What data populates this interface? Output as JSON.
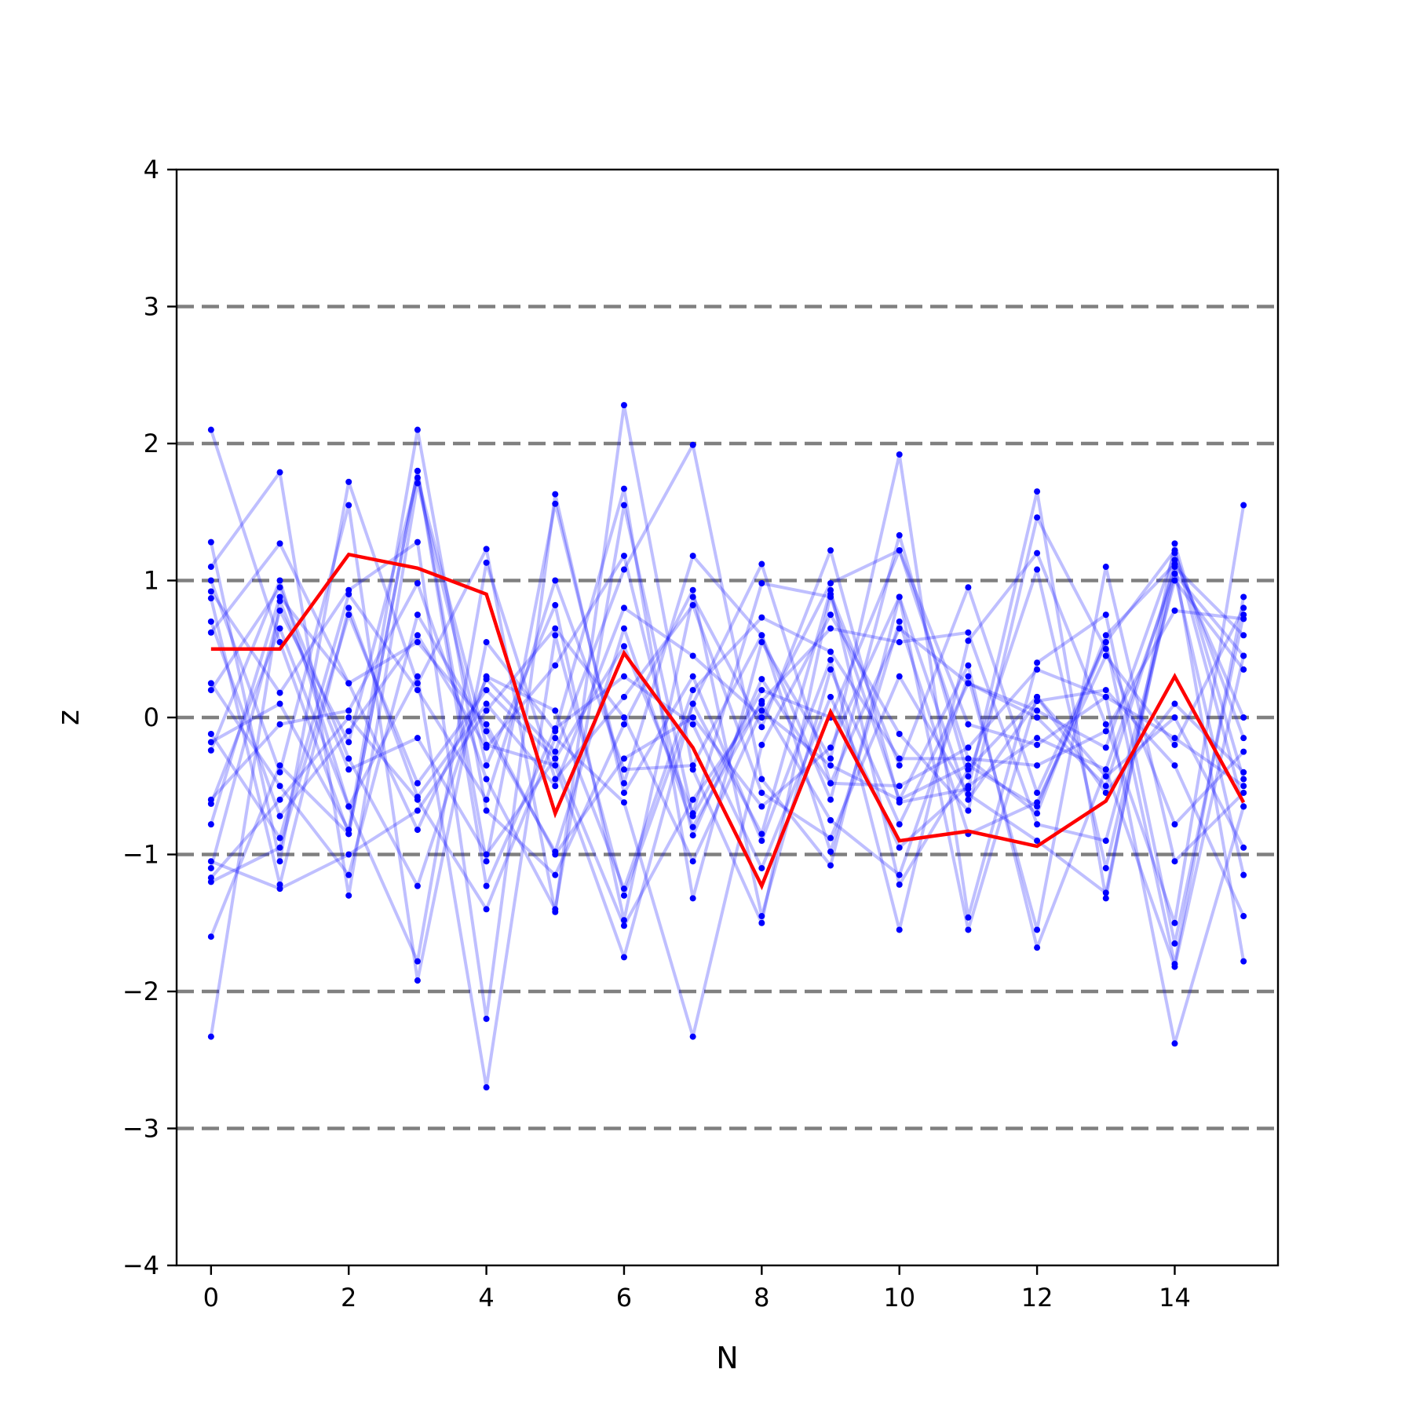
{
  "chart_data": {
    "type": "line",
    "title": "",
    "xlabel": "N",
    "ylabel": "z",
    "xlim": [
      -0.5,
      15.5
    ],
    "ylim": [
      -4,
      4
    ],
    "xticks": [
      0,
      2,
      4,
      6,
      8,
      10,
      12,
      14
    ],
    "yticks": [
      -4,
      -3,
      -2,
      -1,
      0,
      1,
      2,
      3,
      4
    ],
    "ytick_labels": [
      "−4",
      "−3",
      "−2",
      "−1",
      "0",
      "1",
      "2",
      "3",
      "4"
    ],
    "reference_lines": [
      -3,
      -2,
      -1,
      0,
      1,
      2,
      3
    ],
    "reference_line_style": "dashed",
    "grid": false,
    "legend": "none",
    "x": [
      0,
      1,
      2,
      3,
      4,
      5,
      6,
      7,
      8,
      9,
      10,
      11,
      12,
      13,
      14,
      15
    ],
    "highlight_series": {
      "values": [
        0.5,
        0.5,
        1.19,
        1.09,
        0.9,
        -0.7,
        0.47,
        -0.22,
        -1.23,
        0.04,
        -0.9,
        -0.83,
        -0.94,
        -0.61,
        0.3,
        -0.62
      ]
    },
    "sample_series": [
      {
        "values": [
          2.1,
          0.55,
          -0.85,
          1.8,
          -1.05,
          1.56,
          -0.48,
          1.18,
          0.6,
          -0.6,
          1.33,
          -0.43,
          1.08,
          -1.1,
          1.05,
          0.45
        ]
      },
      {
        "values": [
          1.28,
          -1.05,
          1.72,
          0.25,
          1.23,
          -1.42,
          2.28,
          -0.38,
          -1.5,
          0.9,
          -0.35,
          0.95,
          -0.55,
          0.55,
          -1.8,
          0.88
        ]
      },
      {
        "values": [
          1.1,
          1.79,
          -1.3,
          1.71,
          -0.35,
          0.82,
          -1.48,
          0.88,
          -0.07,
          1.22,
          -0.62,
          -0.52,
          1.65,
          -1.32,
          1.27,
          -0.45
        ]
      },
      {
        "values": [
          1.0,
          -0.4,
          1.55,
          -1.92,
          0.55,
          -0.1,
          1.67,
          -1.32,
          0.55,
          -0.3,
          1.92,
          -1.46,
          0.4,
          0.75,
          -1.65,
          0.75
        ]
      },
      {
        "values": [
          0.92,
          0.18,
          0.93,
          1.28,
          -2.2,
          1.63,
          -0.55,
          0.3,
          -0.9,
          0.42,
          -1.55,
          0.56,
          1.2,
          -0.05,
          -1.5,
          1.55
        ]
      },
      {
        "values": [
          0.87,
          -1.22,
          0.8,
          -0.58,
          0.1,
          -0.5,
          0.8,
          0.45,
          0.0,
          0.98,
          1.22,
          -0.3,
          -0.7,
          0.6,
          1.12,
          -1.78
        ]
      },
      {
        "values": [
          0.7,
          -0.72,
          -0.1,
          0.6,
          -0.22,
          0.38,
          1.18,
          -0.86,
          0.28,
          -0.48,
          0.65,
          0.25,
          0.05,
          -0.22,
          1.2,
          -0.15
        ]
      },
      {
        "values": [
          0.62,
          1.27,
          0.25,
          -0.82,
          0.28,
          -0.25,
          1.08,
          1.99,
          -0.45,
          -1.08,
          0.88,
          -0.6,
          0.12,
          0.2,
          -0.35,
          -1.45
        ]
      },
      {
        "values": [
          0.25,
          -0.5,
          -1.15,
          0.75,
          -0.1,
          -0.98,
          0.65,
          -0.8,
          0.12,
          0.65,
          0.55,
          0.62,
          -0.78,
          -0.9,
          1.0,
          0.35
        ]
      },
      {
        "values": [
          0.2,
          0.95,
          -0.3,
          -1.23,
          0.3,
          0.05,
          -1.25,
          0.2,
          0.73,
          0.48,
          -0.3,
          -0.3,
          -0.35,
          -0.1,
          0.78,
          0.72
        ]
      },
      {
        "values": [
          -0.12,
          -0.88,
          0.9,
          0.2,
          -0.6,
          1.0,
          -0.38,
          -0.35,
          0.6,
          -0.98,
          0.7,
          -0.85,
          -0.62,
          0.45,
          -0.2,
          0.8
        ]
      },
      {
        "values": [
          -0.18,
          0.1,
          -0.82,
          2.1,
          -0.68,
          -1.15,
          -0.05,
          0.93,
          -1.45,
          0.35,
          -0.78,
          0.25,
          0.0,
          -0.5,
          1.1,
          0.6
        ]
      },
      {
        "values": [
          -0.24,
          1.0,
          -0.65,
          -1.78,
          1.13,
          -0.45,
          0.15,
          0.82,
          -0.55,
          -0.88,
          0.3,
          -0.56,
          -0.9,
          -1.28,
          1.15,
          0.0
        ]
      },
      {
        "values": [
          -0.6,
          -0.05,
          0.05,
          0.98,
          -0.45,
          -1.4,
          1.55,
          -0.72,
          0.2,
          0.0,
          1.22,
          -0.05,
          -0.2,
          0.15,
          -2.38,
          -0.65
        ]
      },
      {
        "values": [
          -0.63,
          0.65,
          -0.65,
          0.3,
          -2.7,
          0.6,
          -1.3,
          0.1,
          1.12,
          -0.48,
          -0.5,
          -0.22,
          0.35,
          0.15,
          -0.15,
          -0.5
        ]
      },
      {
        "values": [
          -0.78,
          0.88,
          0.25,
          0.55,
          -0.05,
          -1.0,
          -0.3,
          0.0,
          -0.65,
          -0.22,
          0.88,
          -1.55,
          0.15,
          -0.43,
          0.0,
          -0.95
        ]
      },
      {
        "values": [
          -1.05,
          -1.25,
          -1.0,
          -0.68,
          0.05,
          0.65,
          0.0,
          -1.05,
          0.05,
          -0.35,
          -0.6,
          0.38,
          -1.68,
          -0.38,
          1.05,
          -1.15
        ]
      },
      {
        "values": [
          -1.1,
          0.78,
          -0.18,
          1.75,
          -0.2,
          -0.35,
          -1.75,
          0.1,
          -0.85,
          0.93,
          -1.22,
          -0.38,
          0.15,
          -0.55,
          0.1,
          -0.4
        ]
      },
      {
        "values": [
          -1.17,
          -0.6,
          0.0,
          -0.6,
          -1.4,
          -0.15,
          -0.62,
          -2.33,
          -0.2,
          0.75,
          -0.12,
          -0.68,
          1.46,
          0.5,
          -0.78,
          -0.25
        ]
      },
      {
        "values": [
          -1.2,
          -0.95,
          0.75,
          -0.48,
          0.2,
          -0.3,
          -1.52,
          -0.6,
          0.1,
          -0.75,
          -1.15,
          0.3,
          -1.55,
          1.1,
          -1.05,
          -0.55
        ]
      },
      {
        "values": [
          -1.6,
          -0.35,
          -0.85,
          1.8,
          -1.23,
          -0.08,
          0.3,
          -0.05,
          -1.1,
          0.15,
          -0.95,
          -0.5,
          -0.15,
          -0.38,
          -1.82,
          0.45
        ]
      },
      {
        "values": [
          -2.33,
          0.85,
          -0.38,
          -0.15,
          -1.0,
          -0.3,
          0.52,
          -0.7,
          0.98,
          0.88,
          -0.6,
          -0.35,
          -0.65,
          0.55,
          1.22,
          -0.65
        ]
      }
    ]
  }
}
